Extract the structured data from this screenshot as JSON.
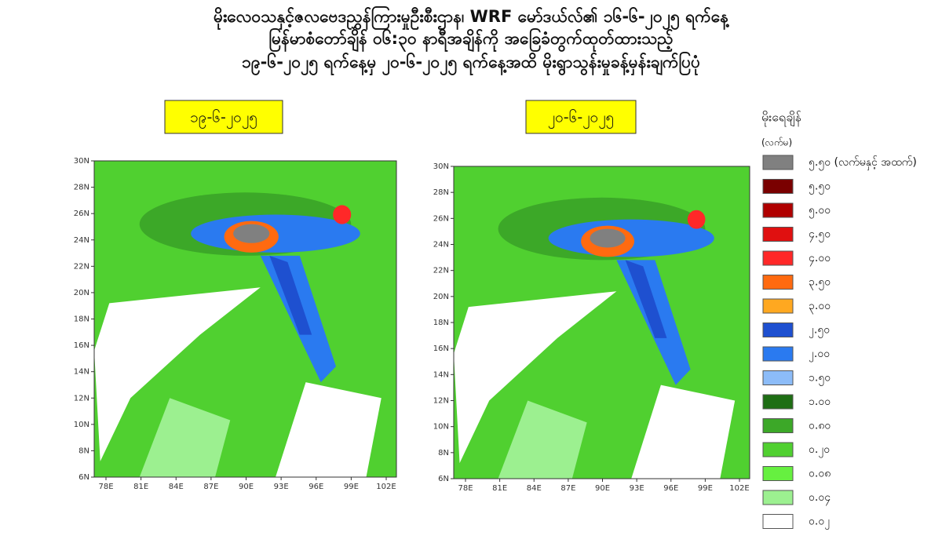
{
  "title": [
    "မိုးလေဝသနှင့်ဇလဗေဒညွှန်ကြားမှုဦးစီးဌာန၊ WRF မော်ဒယ်လ်၏ ၁၆-၆-၂၀၂၅ ရက်နေ့",
    "မြန်မာစံတော်ချိန် ၀၆:၃၀ နာရီအချိန်ကို အခြေခံတွက်ထုတ်ထားသည့်",
    "၁၉-၆-၂၀၂၅ ရက်နေ့မှ ၂၀-၆-၂၀၂၅ ရက်နေ့အထိ မိုးရွာသွန်းမှုခန့်မှန်းချက်ပြပုံ"
  ],
  "maps": [
    {
      "date": "၁၉-၆-၂၀၂၅",
      "x_labels": [
        "78E",
        "81E",
        "84E",
        "87E",
        "90E",
        "93E",
        "96E",
        "99E",
        "102E"
      ],
      "y_labels": [
        "30N",
        "28N",
        "26N",
        "24N",
        "22N",
        "20N",
        "18N",
        "16N",
        "14N",
        "12N",
        "10N",
        "8N",
        "6N"
      ]
    },
    {
      "date": "၂၀-၆-၂၀၂၅",
      "x_labels": [
        "78E",
        "81E",
        "84E",
        "87E",
        "90E",
        "93E",
        "96E",
        "99E",
        "102E"
      ],
      "y_labels": [
        "30N",
        "28N",
        "26N",
        "24N",
        "22N",
        "20N",
        "18N",
        "16N",
        "14N",
        "12N",
        "10N",
        "8N",
        "6N"
      ]
    }
  ],
  "legend": {
    "title": "မိုးရေချိန်",
    "unit": "(လက်မ)",
    "items": [
      {
        "label": "၅.၅၀ (လက်မနှင့် အထက်)",
        "color": "#808080"
      },
      {
        "label": "၅.၅၀",
        "color": "#7a0000"
      },
      {
        "label": "၅.၀၀",
        "color": "#b00000"
      },
      {
        "label": "၄.၅၀",
        "color": "#e01010"
      },
      {
        "label": "၄.၀၀",
        "color": "#ff2828"
      },
      {
        "label": "၃.၅၀",
        "color": "#ff6a10"
      },
      {
        "label": "၃.၀၀",
        "color": "#ffa820"
      },
      {
        "label": "၂.၅၀",
        "color": "#1e50d0"
      },
      {
        "label": "၂.၀၀",
        "color": "#2a7af0"
      },
      {
        "label": "၁.၅၀",
        "color": "#8cbcf8"
      },
      {
        "label": "၁.၀၀",
        "color": "#1e6e14"
      },
      {
        "label": "၀.၈၀",
        "color": "#3ca828"
      },
      {
        "label": "၀.၂၀",
        "color": "#50d030"
      },
      {
        "label": "၀.၀၈",
        "color": "#66f040"
      },
      {
        "label": "၀.၀၄",
        "color": "#9cf090"
      },
      {
        "label": "၀.၀၂",
        "color": "#ffffff"
      }
    ]
  }
}
